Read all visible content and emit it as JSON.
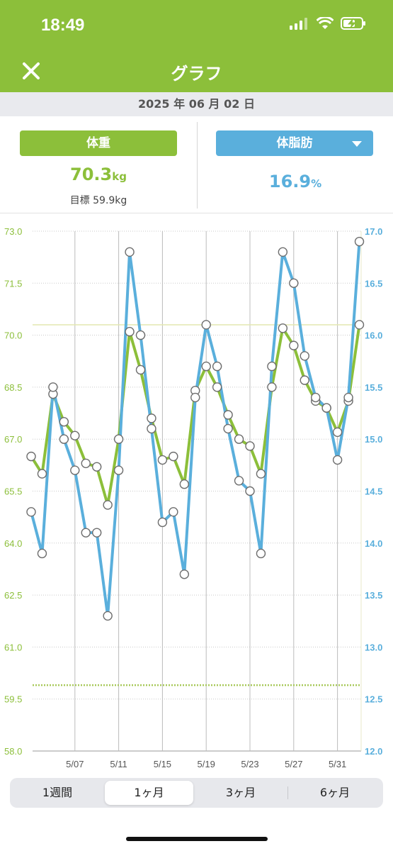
{
  "status": {
    "time": "18:49"
  },
  "nav": {
    "title": "グラフ"
  },
  "date": "2025 年 06 月 02 日",
  "weight": {
    "label": "体重",
    "value": "70.3",
    "unit": "kg",
    "goal": "目標 59.9kg"
  },
  "fat": {
    "label": "体脂肪",
    "value": "16.9",
    "unit": "%"
  },
  "tabs": [
    "1週間",
    "1ヶ月",
    "3ヶ月",
    "6ヶ月"
  ],
  "active_tab": "1ヶ月",
  "colors": {
    "green": "#8cbf3a",
    "blue": "#5aafdc"
  },
  "chart_data": {
    "type": "line",
    "x": [
      "5/3",
      "5/4",
      "5/5",
      "5/6",
      "5/7",
      "5/8",
      "5/9",
      "5/10",
      "5/11",
      "5/12",
      "5/13",
      "5/14",
      "5/15",
      "5/16",
      "5/17",
      "5/18",
      "5/19",
      "5/20",
      "5/21",
      "5/22",
      "5/23",
      "5/24",
      "5/25",
      "5/26",
      "5/27",
      "5/28",
      "5/29",
      "5/30",
      "5/31",
      "6/1",
      "6/2"
    ],
    "x_tick_labels": [
      "5/07",
      "5/11",
      "5/15",
      "5/19",
      "5/23",
      "5/27",
      "5/31"
    ],
    "y_left_ticks": [
      "73.0",
      "71.5",
      "70.0",
      "68.5",
      "67.0",
      "65.5",
      "64.0",
      "62.5",
      "61.0",
      "59.5",
      "58.0"
    ],
    "y_right_ticks": [
      "17.0",
      "16.5",
      "16.0",
      "15.5",
      "15.0",
      "14.5",
      "14.0",
      "13.5",
      "13.0",
      "12.5",
      "12.0"
    ],
    "ylim_left": [
      58.0,
      73.0
    ],
    "ylim_right": [
      12.0,
      17.0
    ],
    "goal_line": 59.9,
    "current_line": 70.3,
    "series": [
      {
        "axis": "left",
        "color": "#8cbf3a",
        "values": [
          66.5,
          66.0,
          68.3,
          67.5,
          67.1,
          66.3,
          66.2,
          65.1,
          67.0,
          70.1,
          69.0,
          67.6,
          66.4,
          66.5,
          65.7,
          68.4,
          69.1,
          68.5,
          67.7,
          67.0,
          66.8,
          66.0,
          68.5,
          70.2,
          69.7,
          68.7,
          68.1,
          67.9,
          67.2,
          68.1,
          70.3
        ]
      },
      {
        "axis": "right",
        "color": "#5aafdc",
        "values": [
          14.3,
          13.9,
          15.5,
          15.0,
          14.7,
          14.1,
          14.1,
          13.3,
          14.7,
          16.8,
          16.0,
          15.1,
          14.2,
          14.3,
          13.7,
          15.4,
          16.1,
          15.7,
          15.1,
          14.6,
          14.5,
          13.9,
          15.7,
          16.8,
          16.5,
          15.8,
          15.4,
          15.3,
          14.8,
          15.4,
          16.9
        ]
      }
    ]
  }
}
